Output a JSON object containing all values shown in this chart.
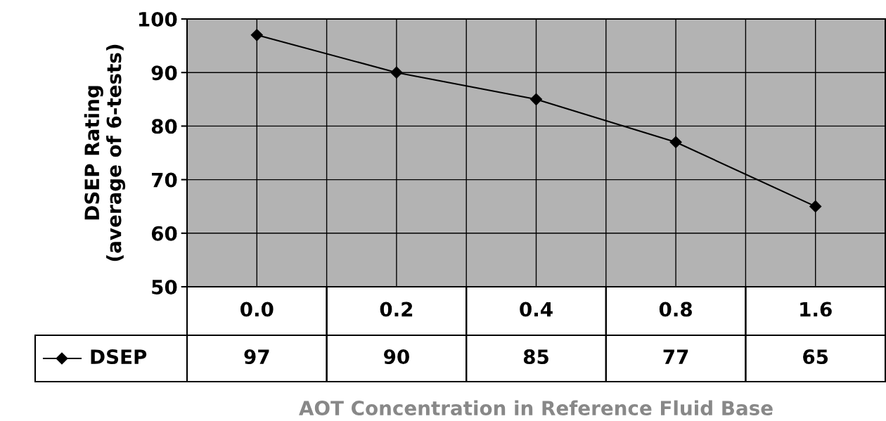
{
  "chart_data": {
    "type": "line",
    "xlabel": "AOT Concentration in Reference Fluid Base",
    "ylabel": "DSEP Rating\n(average of 6-tests)",
    "categories": [
      "0.0",
      "0.2",
      "0.4",
      "0.8",
      "1.6"
    ],
    "series": [
      {
        "name": "DSEP",
        "color": "#000000",
        "values": [
          97,
          90,
          85,
          77,
          65
        ]
      }
    ],
    "ylim": [
      50,
      100
    ],
    "yticks": [
      50,
      60,
      70,
      80,
      90,
      100
    ],
    "grid": true,
    "marker": "diamond",
    "line_style": "solid",
    "data_labels": true,
    "legend": "bottom left"
  }
}
